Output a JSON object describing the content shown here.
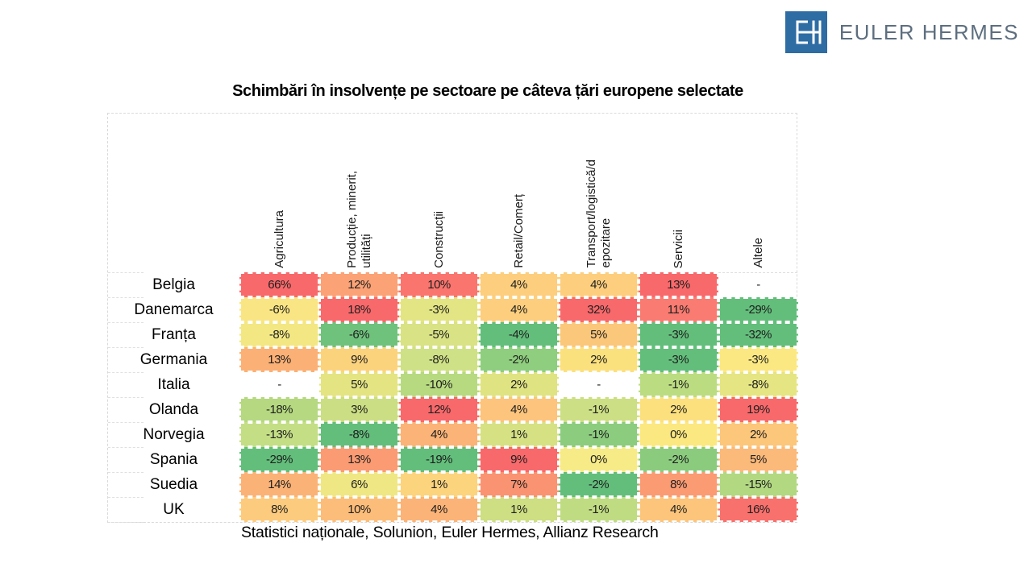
{
  "logo": {
    "wordmark": "EULER HERMES",
    "mark": "EH",
    "square_color": "#2e6ca4",
    "text_color": "#5d6e7f"
  },
  "title": "Schimbări în insolvențe pe sectoare pe câteva țări europene selectate",
  "source": "Statistici naționale, Solunion, Euler Hermes, Allianz Research",
  "chart_data": {
    "type": "heatmap",
    "title": "Schimbări în insolvențe pe sectoare pe câteva țări europene selectate",
    "unit": "percent",
    "null_display": "-",
    "columns": [
      "Agricultura",
      "Producție, minerit,\nutilități",
      "Construcții",
      "Retail/Comerț",
      "Transport/logistică/d\nepozitare",
      "Servicii",
      "Altele"
    ],
    "rows": [
      "Belgia",
      "Danemarca",
      "Franța",
      "Germania",
      "Italia",
      "Olanda",
      "Norvegia",
      "Spania",
      "Suedia",
      "UK"
    ],
    "values_pct": [
      [
        66,
        12,
        10,
        4,
        4,
        13,
        null
      ],
      [
        -6,
        18,
        -3,
        4,
        32,
        11,
        -29
      ],
      [
        -8,
        -6,
        -5,
        -4,
        5,
        -3,
        -32
      ],
      [
        13,
        9,
        -8,
        -2,
        2,
        -3,
        -3
      ],
      [
        null,
        5,
        -10,
        2,
        null,
        -1,
        -8
      ],
      [
        -18,
        3,
        12,
        4,
        -1,
        2,
        19
      ],
      [
        -13,
        -8,
        4,
        1,
        -1,
        0,
        2
      ],
      [
        -29,
        13,
        -19,
        9,
        0,
        -2,
        5
      ],
      [
        14,
        6,
        1,
        7,
        -2,
        8,
        -15
      ],
      [
        8,
        10,
        4,
        1,
        -1,
        4,
        16
      ]
    ],
    "display": [
      [
        "66%",
        "12%",
        "10%",
        "4%",
        "4%",
        "13%",
        "-"
      ],
      [
        "-6%",
        "18%",
        "-3%",
        "4%",
        "32%",
        "11%",
        "-29%"
      ],
      [
        "-8%",
        "-6%",
        "-5%",
        "-4%",
        "5%",
        "-3%",
        "-32%"
      ],
      [
        "13%",
        "9%",
        "-8%",
        "-2%",
        "2%",
        "-3%",
        "-3%"
      ],
      [
        "-",
        "5%",
        "-10%",
        "2%",
        "-",
        "-1%",
        "-8%"
      ],
      [
        "-18%",
        "3%",
        "12%",
        "4%",
        "-1%",
        "2%",
        "19%"
      ],
      [
        "-13%",
        "-8%",
        "4%",
        "1%",
        "-1%",
        "0%",
        "2%"
      ],
      [
        "-29%",
        "13%",
        "-19%",
        "9%",
        "0%",
        "-2%",
        "5%"
      ],
      [
        "14%",
        "6%",
        "1%",
        "7%",
        "-2%",
        "8%",
        "-15%"
      ],
      [
        "8%",
        "10%",
        "4%",
        "1%",
        "-1%",
        "4%",
        "16%"
      ]
    ],
    "cell_colors": [
      [
        "#F8696B",
        "#FBA276",
        "#F9756E",
        "#FCCE7D",
        "#FCCE7D",
        "#F8696B",
        null
      ],
      [
        "#F9E583",
        "#F8696B",
        "#E3E584",
        "#FCCE7D",
        "#F8696B",
        "#F97B71",
        "#63BE7B"
      ],
      [
        "#F2E783",
        "#6FC27C",
        "#D9E284",
        "#63BE7B",
        "#FBC77B",
        "#63BE7B",
        "#63BE7B"
      ],
      [
        "#FBB075",
        "#FCD37D",
        "#CFE186",
        "#8FCE7E",
        "#FBE07E",
        "#63BE7B",
        "#FCE882"
      ],
      [
        null,
        "#E4E483",
        "#B7DA80",
        "#E0E382",
        null,
        "#BCDC81",
        "#E5E583"
      ],
      [
        "#B5D880",
        "#CBDE83",
        "#F8696B",
        "#FCC47C",
        "#CDDF84",
        "#FCE07E",
        "#F8696B"
      ],
      [
        "#C4DE85",
        "#63BE7B",
        "#FBB377",
        "#D6E184",
        "#8CCC7E",
        "#FCE880",
        "#FCC67B"
      ],
      [
        "#63BE7B",
        "#FA9B73",
        "#63BE7B",
        "#F8696B",
        "#F6EB87",
        "#8BCB7E",
        "#FBB97A"
      ],
      [
        "#FBB276",
        "#EFE784",
        "#FCD47E",
        "#FA9371",
        "#63BE7B",
        "#FA9B73",
        "#B2D881"
      ],
      [
        "#FDCB7D",
        "#FCBD7A",
        "#FBB377",
        "#CDDE83",
        "#C0DC83",
        "#FCC57B",
        "#F8716D"
      ]
    ],
    "color_scale": {
      "min": "#63BE7B",
      "mid": "#FFEB84",
      "max": "#F8696B",
      "applied": "per-column"
    },
    "legend": "none",
    "grid": "dashed-light"
  }
}
